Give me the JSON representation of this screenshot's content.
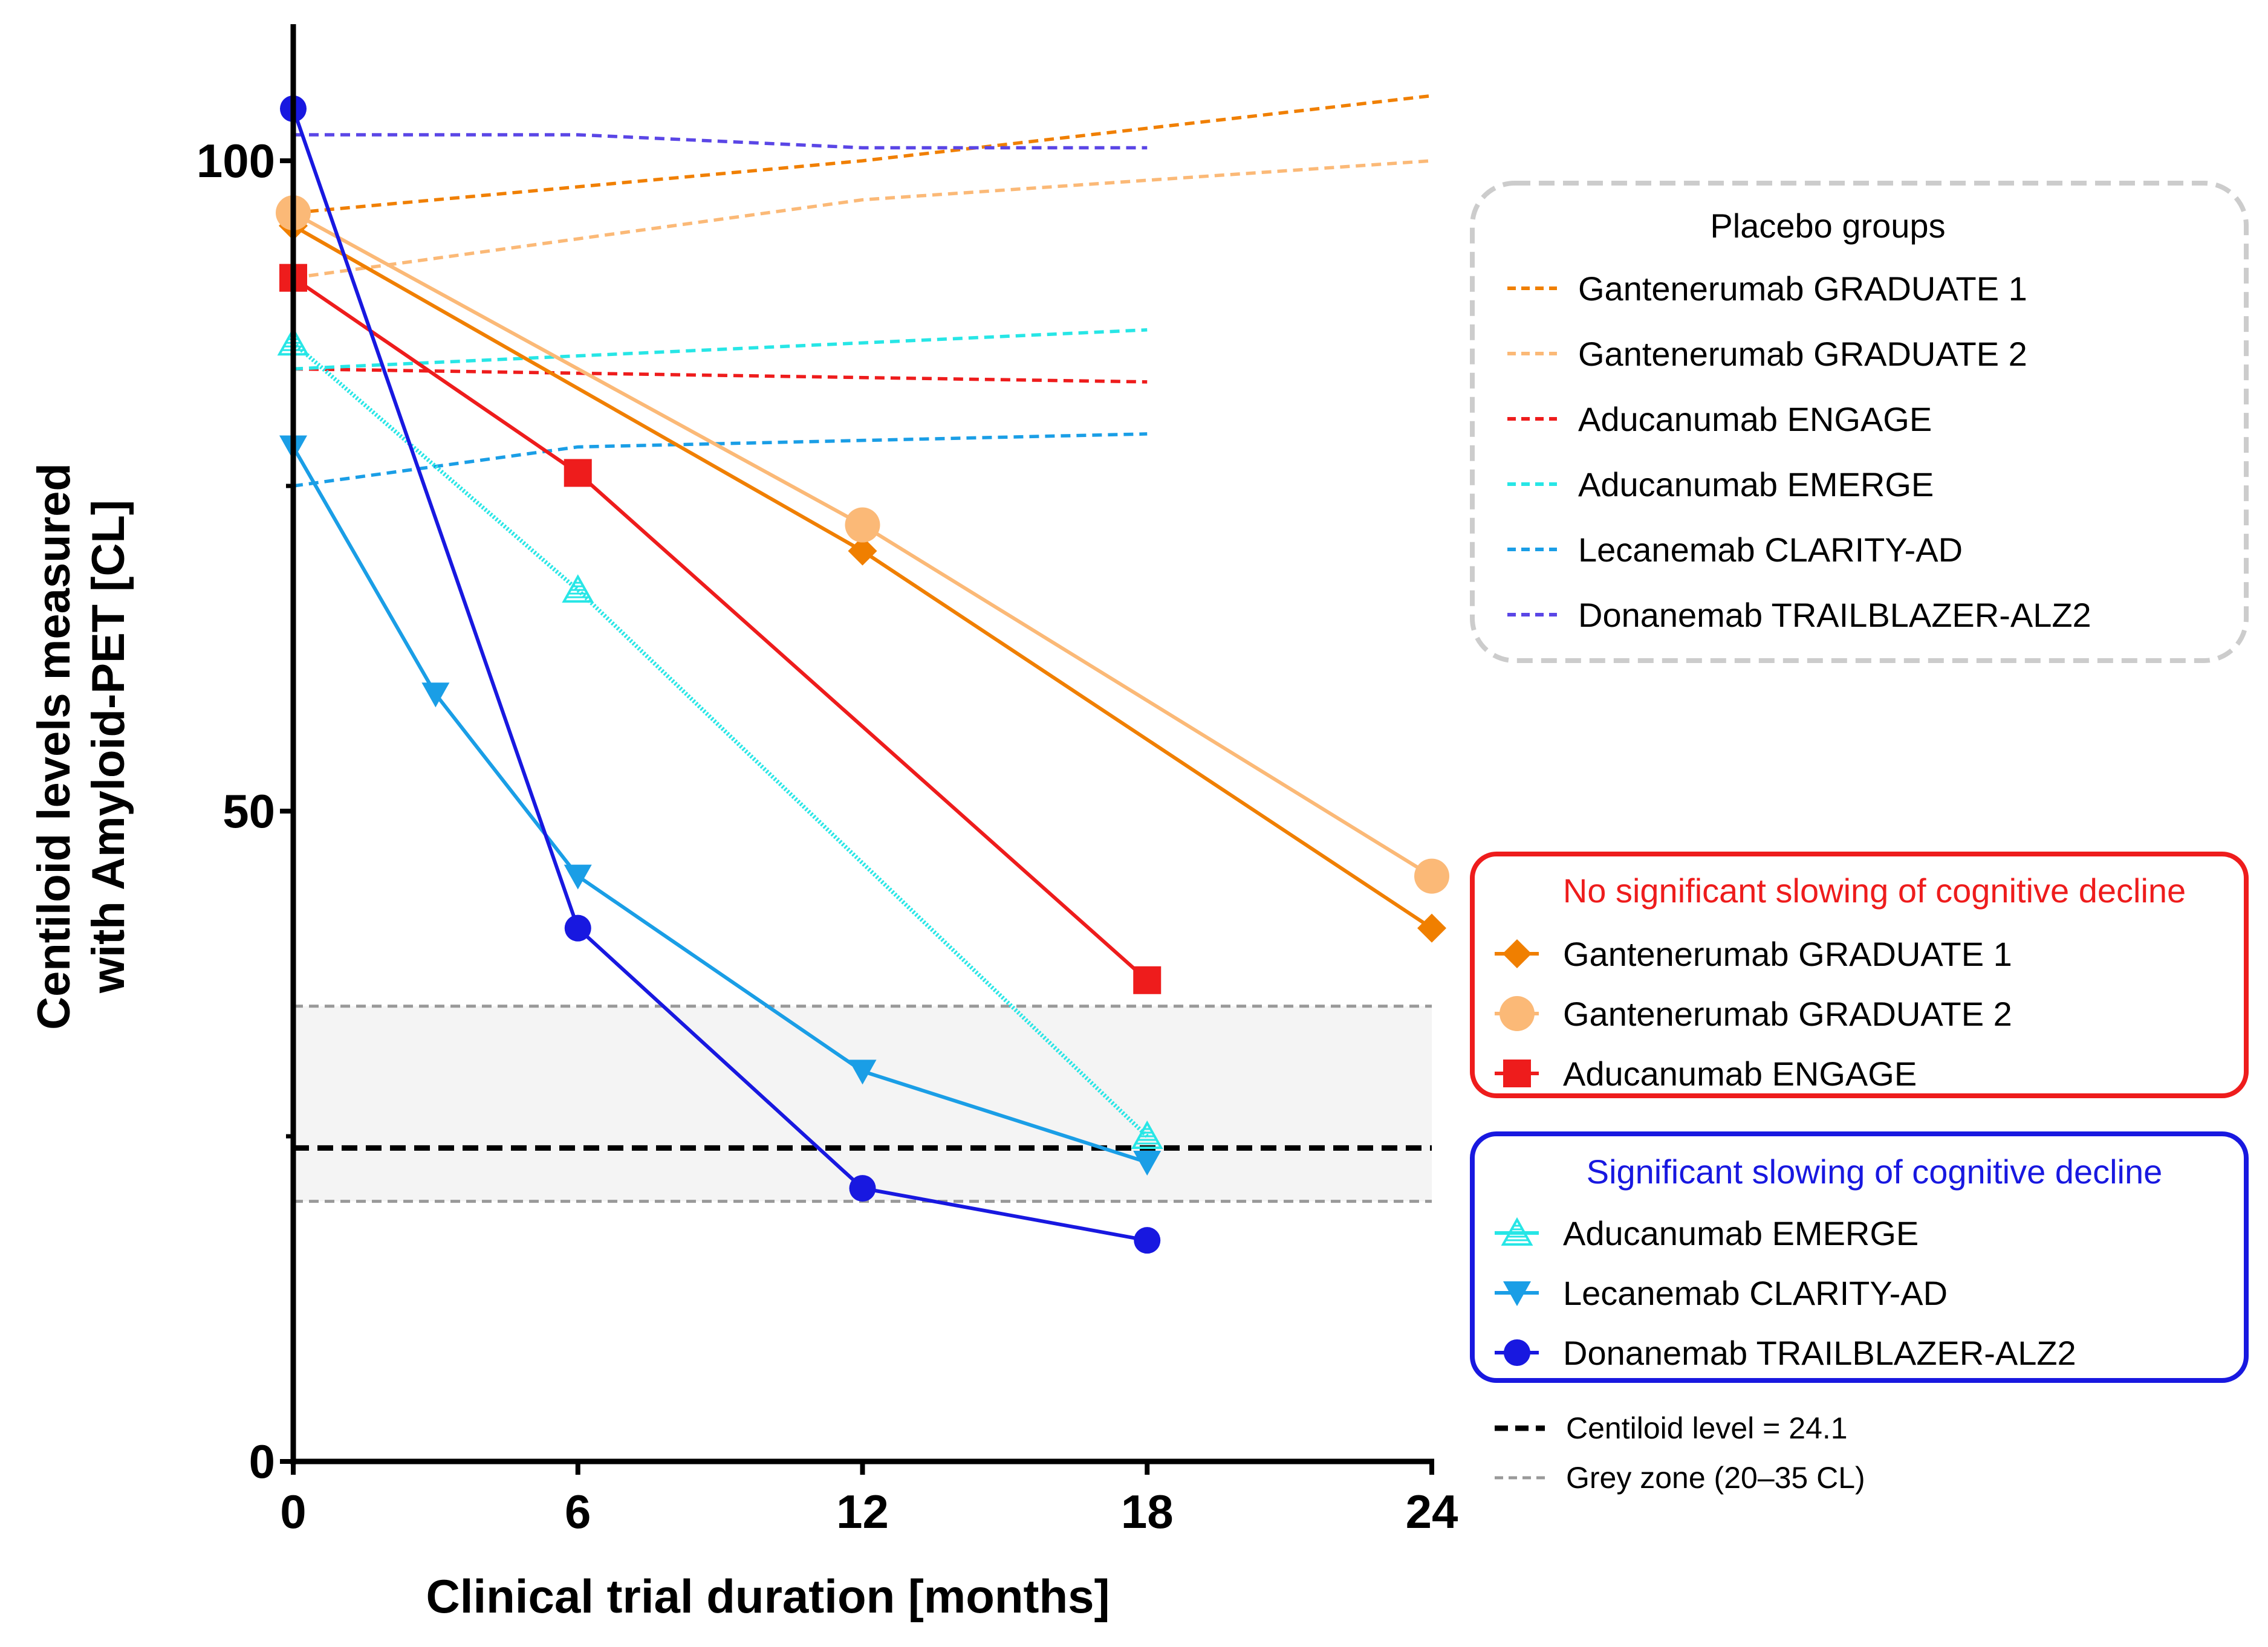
{
  "chart_data": {
    "type": "line",
    "xlabel": "Clinical trial duration [months]",
    "ylabel_lines": [
      "Centiloid levels measured",
      "with Amyloid-PET [CL]"
    ],
    "xlim": [
      0,
      24
    ],
    "ylim": [
      0,
      110
    ],
    "x_ticks": [
      0,
      6,
      12,
      18,
      24
    ],
    "x_tick_labels": [
      "0",
      "6",
      "12",
      "18",
      "24"
    ],
    "y_ticks": [
      0,
      50,
      100
    ],
    "y_tick_labels": [
      "0",
      "50",
      "100"
    ],
    "y_minor_ticks": [
      25,
      75
    ],
    "placebo_series": [
      {
        "name": "Gantenerumab GRADUATE 1",
        "color": "#f07f00",
        "x": [
          0,
          12,
          24
        ],
        "y": [
          96,
          100,
          105
        ]
      },
      {
        "name": "Gantenerumab GRADUATE 2",
        "color": "#fbb977",
        "x": [
          0,
          12,
          24
        ],
        "y": [
          91,
          97,
          100
        ]
      },
      {
        "name": "Aducanumab ENGAGE",
        "color": "#ee1c1c",
        "x": [
          0,
          18
        ],
        "y": [
          84,
          83
        ]
      },
      {
        "name": "Aducanumab EMERGE",
        "color": "#27e6e6",
        "x": [
          0,
          6,
          18
        ],
        "y": [
          84,
          85,
          87
        ]
      },
      {
        "name": "Lecanemab CLARITY-AD",
        "color": "#1a9ee6",
        "x": [
          0,
          6,
          18
        ],
        "y": [
          75,
          78,
          79
        ]
      },
      {
        "name": "Donanemab TRAILBLAZER-ALZ2",
        "color": "#5a46e6",
        "x": [
          0,
          6,
          12,
          18
        ],
        "y": [
          102,
          102,
          101,
          101
        ]
      }
    ],
    "treatment_series": [
      {
        "name": "Gantenerumab GRADUATE 1",
        "color": "#f07f00",
        "marker": "diamond",
        "x": [
          0,
          12,
          24
        ],
        "y": [
          95,
          70,
          41
        ]
      },
      {
        "name": "Gantenerumab GRADUATE 2",
        "color": "#fbb977",
        "marker": "circle-large",
        "x": [
          0,
          12,
          24
        ],
        "y": [
          96,
          72,
          45
        ]
      },
      {
        "name": "Aducanumab ENGAGE",
        "color": "#ee1c1c",
        "marker": "square",
        "x": [
          0,
          6,
          18
        ],
        "y": [
          91,
          76,
          37
        ]
      },
      {
        "name": "Aducanumab EMERGE",
        "color": "#27e6e6",
        "marker": "triangle-up",
        "x": [
          0,
          6,
          18
        ],
        "y": [
          86,
          67,
          25
        ]
      },
      {
        "name": "Lecanemab CLARITY-AD",
        "color": "#1a9ee6",
        "marker": "triangle-down",
        "x": [
          0,
          3,
          6,
          12,
          18
        ],
        "y": [
          78,
          59,
          45,
          30,
          23
        ]
      },
      {
        "name": "Donanemab TRAILBLAZER-ALZ2",
        "color": "#1818e0",
        "marker": "circle",
        "x": [
          0,
          6,
          12,
          18
        ],
        "y": [
          104,
          41,
          21,
          17
        ]
      }
    ],
    "reference_lines": [
      {
        "label": "Centiloid level = 24.1",
        "y": 24.1,
        "color": "#000000"
      },
      {
        "label": "Grey zone (20–35 CL)",
        "y_range": [
          20,
          35
        ],
        "color": "#999999"
      }
    ],
    "legends": {
      "placebo": {
        "title": "Placebo groups",
        "border_color": "#cccccc"
      },
      "no_slowing": {
        "title": "No significant slowing of cognitive decline",
        "title_color": "#ee1c1c",
        "border_color": "#ee1c1c",
        "entries": [
          {
            "name": "Gantenerumab GRADUATE 1",
            "marker": "diamond",
            "color": "#f07f00"
          },
          {
            "name": "Gantenerumab GRADUATE 2",
            "marker": "circle-large",
            "color": "#fbb977"
          },
          {
            "name": "Aducanumab ENGAGE",
            "marker": "square",
            "color": "#ee1c1c"
          }
        ]
      },
      "slowing": {
        "title": "Significant slowing of cognitive decline",
        "title_color": "#1818e0",
        "border_color": "#1818e0",
        "entries": [
          {
            "name": "Aducanumab EMERGE",
            "marker": "triangle-up",
            "color": "#27e6e6"
          },
          {
            "name": "Lecanemab CLARITY-AD",
            "marker": "triangle-down",
            "color": "#1a9ee6"
          },
          {
            "name": "Donanemab TRAILBLAZER-ALZ2",
            "marker": "circle",
            "color": "#1818e0"
          }
        ]
      }
    }
  }
}
